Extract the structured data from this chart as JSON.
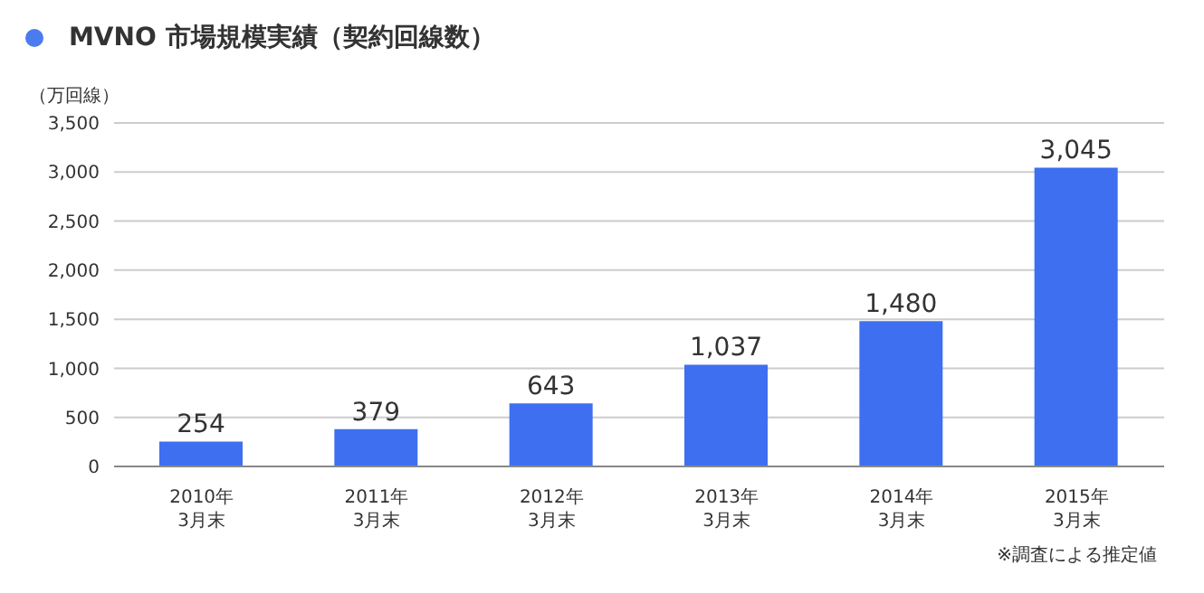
{
  "chart_data": {
    "type": "bar",
    "title": "MVNO 市場規模実績（契約回線数）",
    "ylabel": "（万回線）",
    "categories": [
      "2010年\n3月末",
      "2011年\n3月末",
      "2012年\n3月末",
      "2013年\n3月末",
      "2014年\n3月末",
      "2015年\n3月末"
    ],
    "values": [
      254,
      379,
      643,
      1037,
      1480,
      3045
    ],
    "color": "#3d6ff0",
    "value_labels": [
      "254",
      "379",
      "643",
      "1,037",
      "1,480",
      "3,045"
    ],
    "ylim": [
      0,
      3500
    ],
    "yticks": [
      0,
      500,
      {
        "value": 1000,
        "label": "1,000"
      },
      {
        "value": 1500,
        "label": "1,500"
      },
      {
        "value": 2000,
        "label": "2,000"
      },
      {
        "value": 2500,
        "label": "2,500"
      },
      {
        "value": 3000,
        "label": "3,000"
      },
      {
        "value": 3500,
        "label": "3,500"
      }
    ],
    "grid": "y",
    "annotations": [
      "※調査による推定値"
    ]
  }
}
